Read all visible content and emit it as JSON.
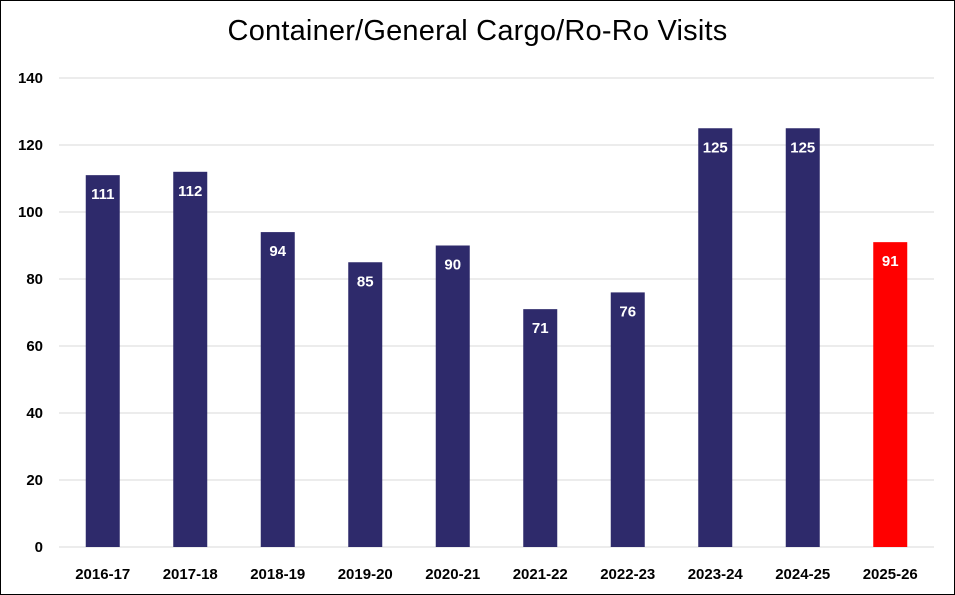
{
  "chart_data": {
    "type": "bar",
    "title": "Container/General Cargo/Ro-Ro Visits",
    "xlabel": "",
    "ylabel": "",
    "categories": [
      "2016-17",
      "2017-18",
      "2018-19",
      "2019-20",
      "2020-21",
      "2021-22",
      "2022-23",
      "2023-24",
      "2024-25",
      "2025-26"
    ],
    "values": [
      111,
      112,
      94,
      85,
      90,
      71,
      76,
      125,
      125,
      91
    ],
    "data_labels": [
      "111",
      "112",
      "94",
      "85",
      "90",
      "71",
      "76",
      "125",
      "125",
      "91"
    ],
    "ylim": [
      0,
      140
    ],
    "yticks": [
      0,
      20,
      40,
      60,
      80,
      100,
      120,
      140
    ],
    "ytick_labels": [
      "0",
      "20",
      "40",
      "60",
      "80",
      "100",
      "120",
      "140"
    ],
    "grid": true,
    "legend": "none",
    "colors": {
      "bar": "#2e2a6b",
      "highlight_bar": "#ff0000",
      "gridline": "#d9d9d9",
      "label": "#ffffff"
    },
    "highlight_categories": [
      "2025-26"
    ]
  }
}
